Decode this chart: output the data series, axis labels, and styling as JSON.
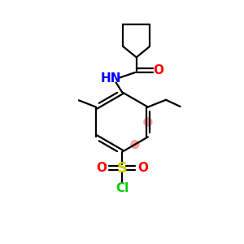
{
  "bg_color": "#ffffff",
  "atom_colors": {
    "N": "#0000ff",
    "O": "#ff0000",
    "S": "#cccc00",
    "Cl": "#00cc00"
  },
  "bond_color": "#000000",
  "aromatic_highlight": "#ff9999",
  "bond_lw": 1.6,
  "figsize": [
    3.0,
    3.0
  ],
  "dpi": 100
}
